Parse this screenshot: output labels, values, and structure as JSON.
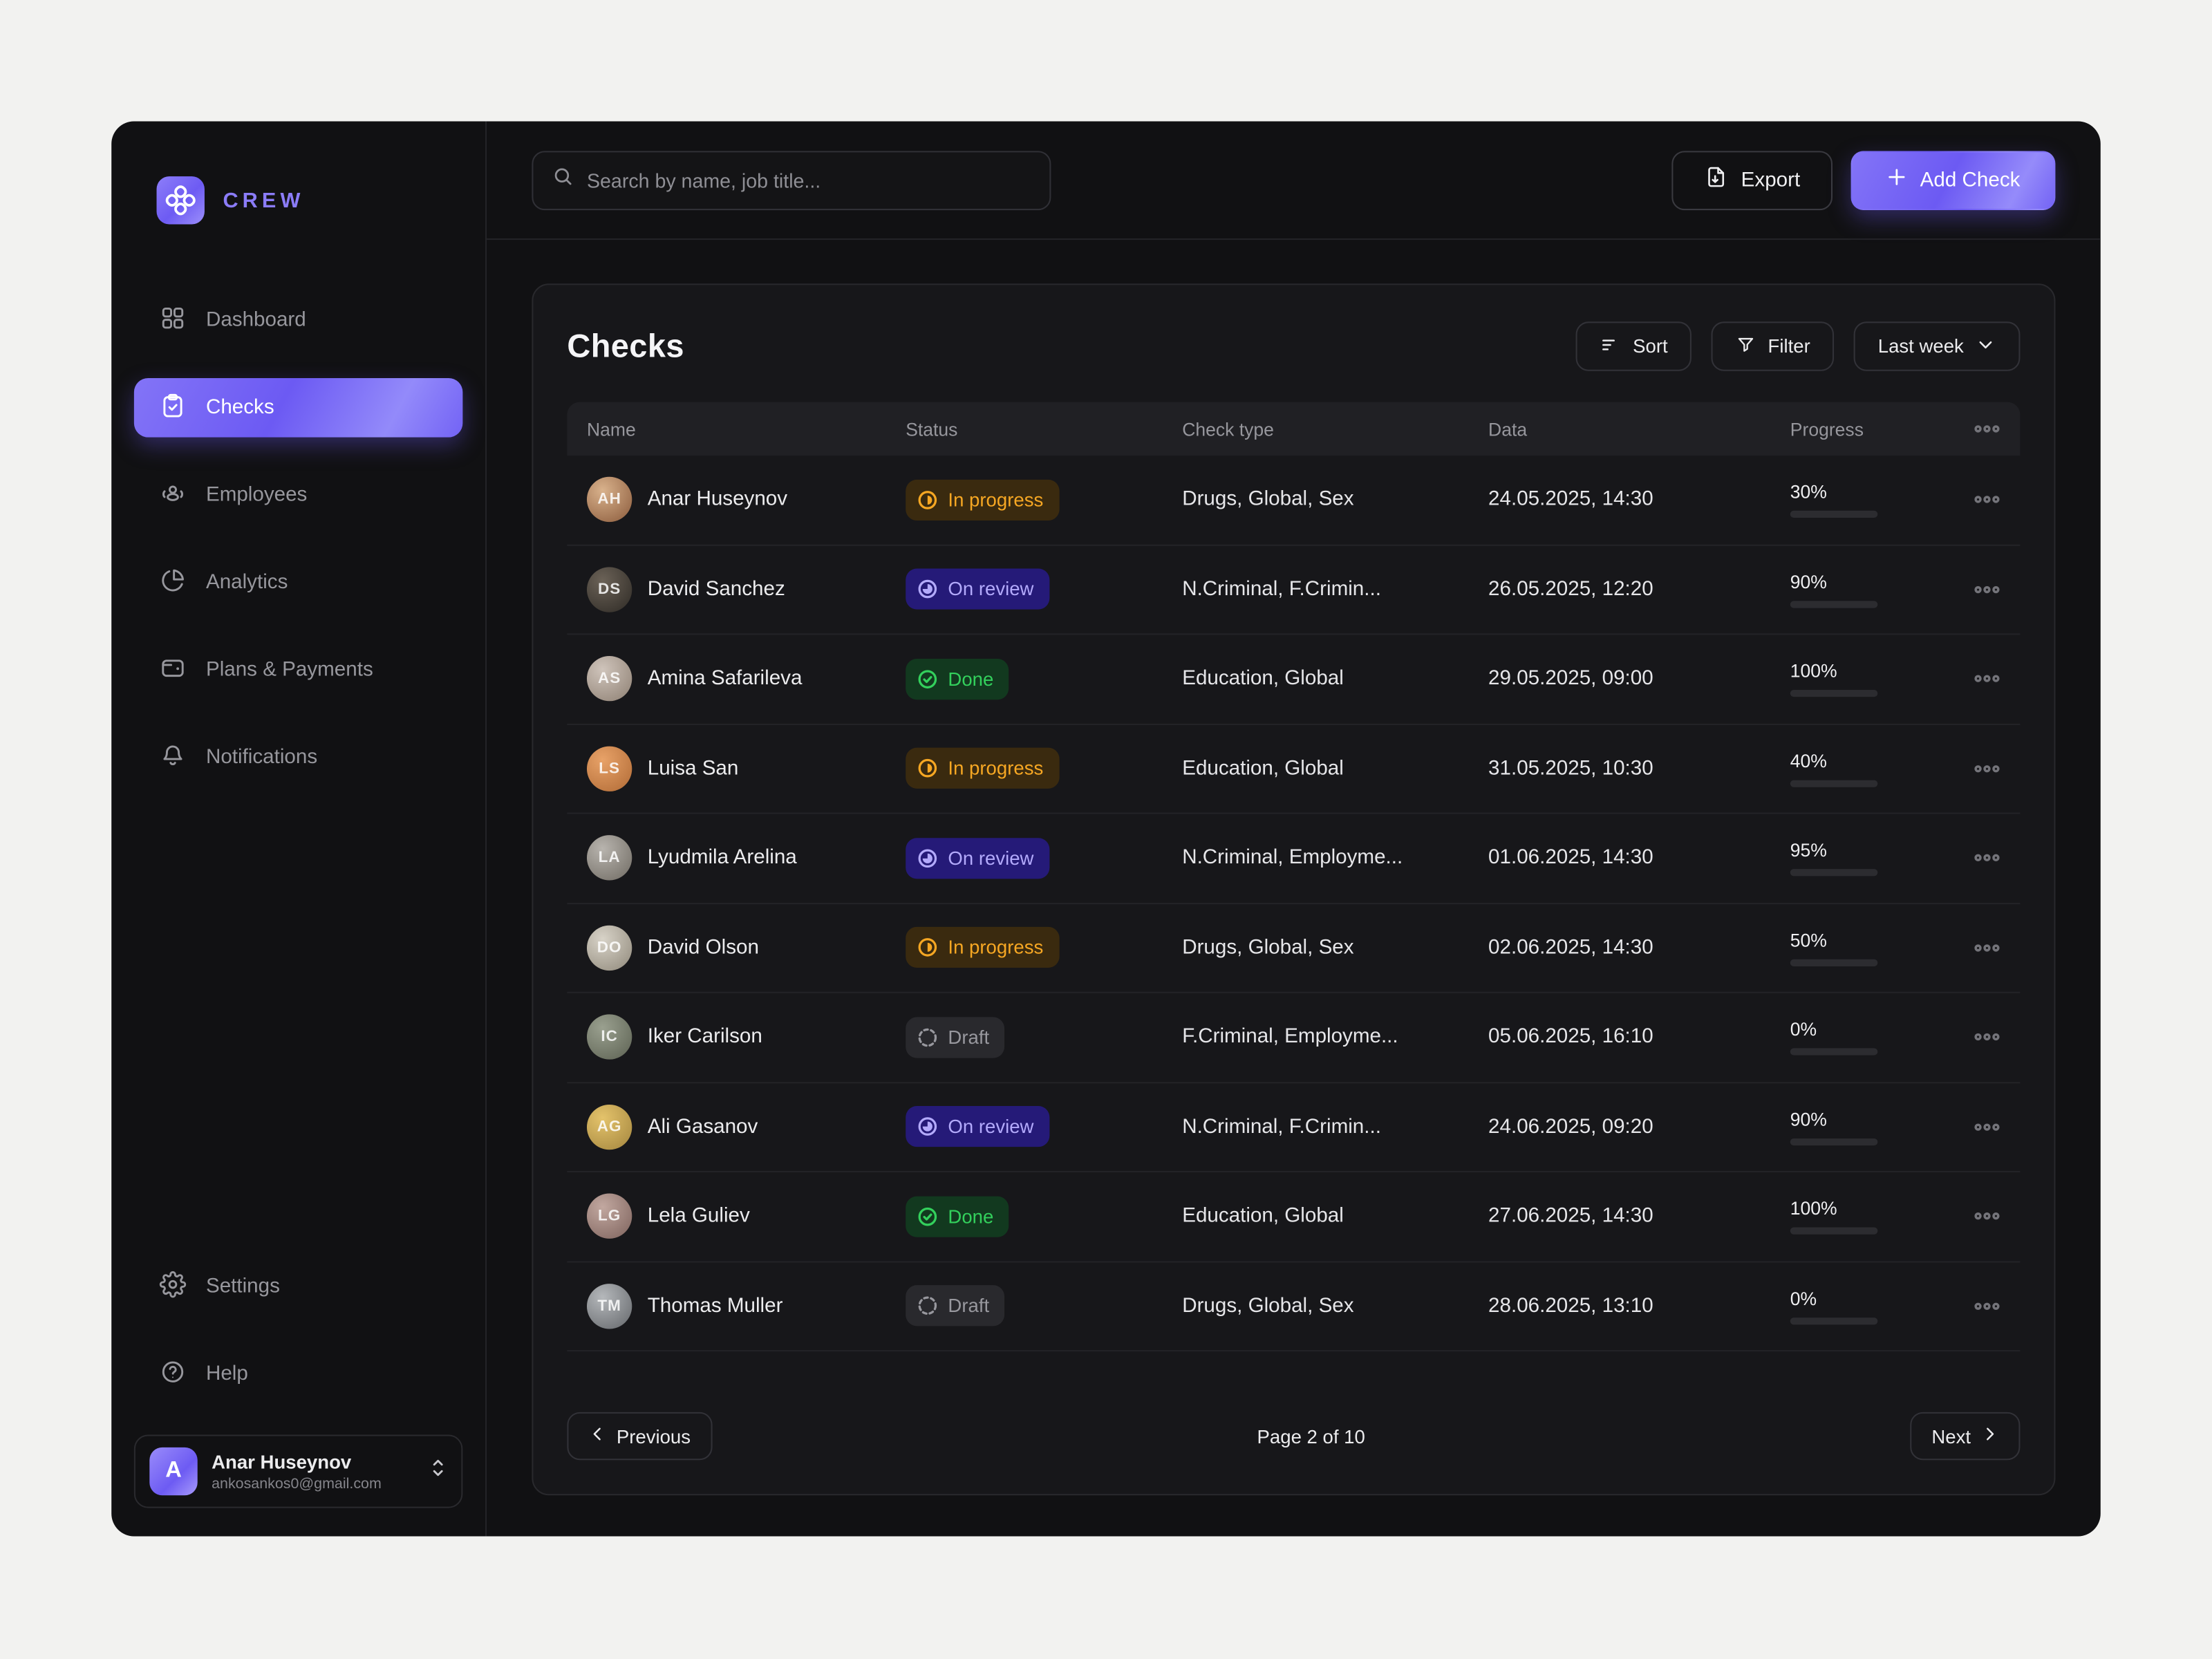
{
  "brand": {
    "name": "CREW",
    "logo_icon": "knot-icon"
  },
  "topbar": {
    "search": {
      "placeholder": "Search by name, job title...",
      "icon": "search-icon"
    },
    "export_button": {
      "label": "Export",
      "icon": "file-export-icon"
    },
    "add_check_button": {
      "label": "Add Check",
      "icon": "plus-icon"
    }
  },
  "sidebar": {
    "items": [
      {
        "label": "Dashboard",
        "icon": "grid-icon",
        "active": false
      },
      {
        "label": "Checks",
        "icon": "clipboard-check-icon",
        "active": true
      },
      {
        "label": "Employees",
        "icon": "people-icon",
        "active": false
      },
      {
        "label": "Analytics",
        "icon": "pie-chart-icon",
        "active": false
      },
      {
        "label": "Plans & Payments",
        "icon": "wallet-icon",
        "active": false
      },
      {
        "label": "Notifications",
        "icon": "bell-icon",
        "active": false
      }
    ],
    "footer_items": [
      {
        "label": "Settings",
        "icon": "gear-icon"
      },
      {
        "label": "Help",
        "icon": "help-icon"
      }
    ],
    "user": {
      "initial": "A",
      "name": "Anar Huseynov",
      "email": "ankosankos0@gmail.com"
    }
  },
  "main": {
    "title": "Checks",
    "controls": {
      "sort_label": "Sort",
      "sort_icon": "sort-lines-icon",
      "filter_label": "Filter",
      "filter_icon": "funnel-icon",
      "range_label": "Last week",
      "range_icon": "chevron-down-icon"
    },
    "table": {
      "columns": [
        "Name",
        "Status",
        "Check type",
        "Data",
        "Progress"
      ],
      "rows": [
        {
          "name": "Anar Huseynov",
          "status": "In progress",
          "status_key": "in-progress",
          "check_type": "Drugs, Global, Sex",
          "data": "24.05.2025, 14:30",
          "progress": 30
        },
        {
          "name": "David Sanchez",
          "status": "On review",
          "status_key": "on-review",
          "check_type": "N.Criminal, F.Crimin...",
          "data": "26.05.2025, 12:20",
          "progress": 90
        },
        {
          "name": "Amina Safarileva",
          "status": "Done",
          "status_key": "done",
          "check_type": "Education, Global",
          "data": "29.05.2025, 09:00",
          "progress": 100
        },
        {
          "name": "Luisa San",
          "status": "In progress",
          "status_key": "in-progress",
          "check_type": "Education, Global",
          "data": "31.05.2025, 10:30",
          "progress": 40
        },
        {
          "name": "Lyudmila Arelina",
          "status": "On review",
          "status_key": "on-review",
          "check_type": "N.Criminal, Employme...",
          "data": "01.06.2025, 14:30",
          "progress": 95
        },
        {
          "name": "David Olson",
          "status": "In progress",
          "status_key": "in-progress",
          "check_type": "Drugs, Global, Sex",
          "data": "02.06.2025, 14:30",
          "progress": 50
        },
        {
          "name": "Iker Carilson",
          "status": "Draft",
          "status_key": "draft",
          "check_type": "F.Criminal, Employme...",
          "data": "05.06.2025, 16:10",
          "progress": 0
        },
        {
          "name": "Ali Gasanov",
          "status": "On review",
          "status_key": "on-review",
          "check_type": "N.Criminal, F.Crimin...",
          "data": "24.06.2025, 09:20",
          "progress": 90
        },
        {
          "name": "Lela Guliev",
          "status": "Done",
          "status_key": "done",
          "check_type": "Education, Global",
          "data": "27.06.2025, 14:30",
          "progress": 100
        },
        {
          "name": "Thomas Muller",
          "status": "Draft",
          "status_key": "draft",
          "check_type": "Drugs, Global, Sex",
          "data": "28.06.2025, 13:10",
          "progress": 0
        }
      ]
    },
    "pagination": {
      "previous_label": "Previous",
      "page_label": "Page 2 of 10",
      "next_label": "Next"
    }
  },
  "status_styles": {
    "in-progress": {
      "fg": "#F6A723",
      "bg": "#3a2a0f",
      "bar": "#F6A723",
      "icon": "half-circle-icon"
    },
    "on-review": {
      "fg": "#b3aafc",
      "bg": "#251a78",
      "bar": "#7b68f6",
      "icon": "clock-pie-icon"
    },
    "done": {
      "fg": "#33d05c",
      "bg": "#12391f",
      "bar": "#41da6b",
      "icon": "check-circle-icon"
    },
    "draft": {
      "fg": "#98989e",
      "bg": "#29292d",
      "bar": "#3a3a3f",
      "icon": "dashed-circle-icon"
    }
  },
  "colors": {
    "accent": "#7b68f6",
    "accent_light": "#8b7cf8",
    "window_bg": "#111113",
    "page_bg": "#F2F2F0"
  }
}
